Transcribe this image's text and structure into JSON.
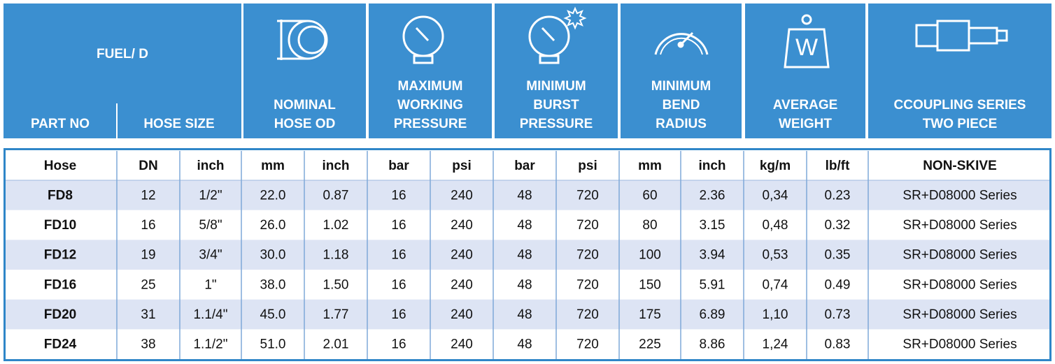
{
  "header": {
    "title": "FUEL/ D",
    "part_no": "PART NO",
    "hose_size": "HOSE SIZE",
    "groups": [
      {
        "lines": [
          "NOMINAL",
          "HOSE OD"
        ]
      },
      {
        "lines": [
          "MAXIMUM",
          "WORKING",
          "PRESSURE"
        ]
      },
      {
        "lines": [
          "MINIMUM",
          "BURST",
          "PRESSURE"
        ]
      },
      {
        "lines": [
          "MINIMUM",
          "BEND",
          "RADIUS"
        ]
      },
      {
        "lines": [
          "AVERAGE",
          "WEIGHT"
        ]
      },
      {
        "lines": [
          "CCOUPLING SERIES",
          "TWO PIECE"
        ]
      }
    ],
    "weight_icon": "W"
  },
  "table": {
    "columns": [
      "Hose",
      "DN",
      "inch",
      "mm",
      "inch",
      "bar",
      "psi",
      "bar",
      "psi",
      "mm",
      "inch",
      "kg/m",
      "lb/ft",
      "NON-SKIVE"
    ],
    "rows": [
      [
        "FD8",
        "12",
        "1/2\"",
        "22.0",
        "0.87",
        "16",
        "240",
        "48",
        "720",
        "60",
        "2.36",
        "0,34",
        "0.23",
        "SR+D08000 Series"
      ],
      [
        "FD10",
        "16",
        "5/8\"",
        "26.0",
        "1.02",
        "16",
        "240",
        "48",
        "720",
        "80",
        "3.15",
        "0,48",
        "0.32",
        "SR+D08000 Series"
      ],
      [
        "FD12",
        "19",
        "3/4\"",
        "30.0",
        "1.18",
        "16",
        "240",
        "48",
        "720",
        "100",
        "3.94",
        "0,53",
        "0.35",
        "SR+D08000 Series"
      ],
      [
        "FD16",
        "25",
        "1\"",
        "38.0",
        "1.50",
        "16",
        "240",
        "48",
        "720",
        "150",
        "5.91",
        "0,74",
        "0.49",
        "SR+D08000 Series"
      ],
      [
        "FD20",
        "31",
        "1.1/4\"",
        "45.0",
        "1.77",
        "16",
        "240",
        "48",
        "720",
        "175",
        "6.89",
        "1,10",
        "0.73",
        "SR+D08000 Series"
      ],
      [
        "FD24",
        "38",
        "1.1/2\"",
        "51.0",
        "2.01",
        "16",
        "240",
        "48",
        "720",
        "225",
        "8.86",
        "1,24",
        "0.83",
        "SR+D08000 Series"
      ]
    ]
  }
}
